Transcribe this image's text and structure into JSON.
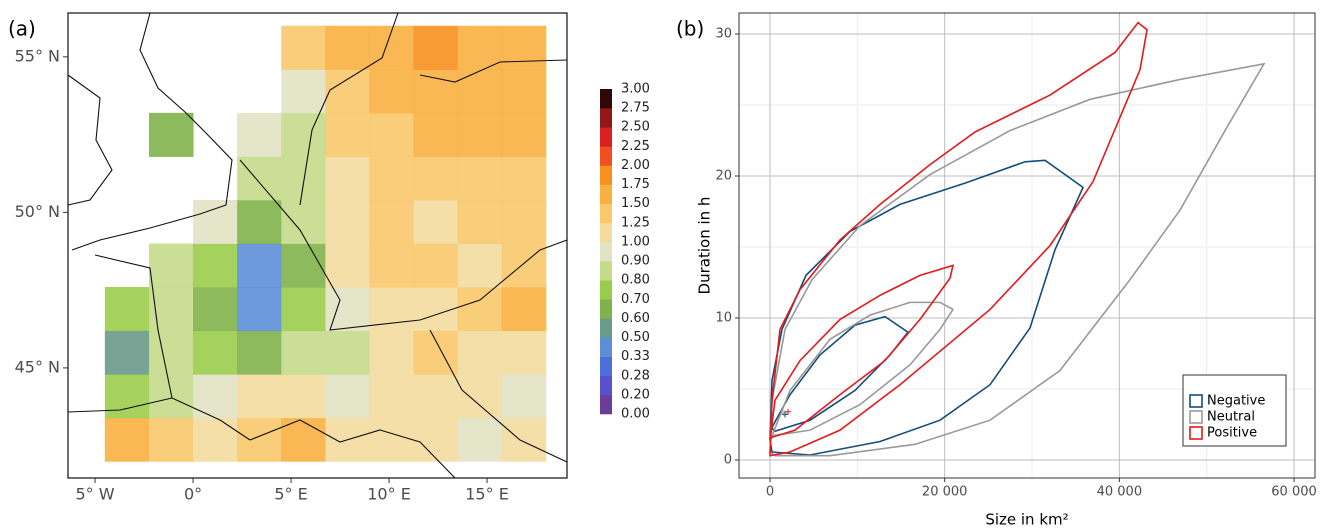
{
  "chart_data": [
    {
      "type": "heatmap",
      "panel_label": "(a)",
      "x": [
        -3.375,
        -1.125,
        1.125,
        3.375,
        5.625,
        7.875,
        10.125,
        12.375,
        14.625,
        16.875
      ],
      "y": [
        42.7,
        44.1,
        45.5,
        46.9,
        48.3,
        49.7,
        51.1,
        52.5,
        53.9,
        55.3
      ],
      "z": [
        [
          1.5,
          1.4,
          1.0,
          1.3,
          1.6,
          1.2,
          1.1,
          1.0,
          0.9,
          1.0
        ],
        [
          0.7,
          0.8,
          0.9,
          1.0,
          1.1,
          0.9,
          1.2,
          1.1,
          1.0,
          0.9
        ],
        [
          0.5,
          0.8,
          0.7,
          0.6,
          0.8,
          0.8,
          1.2,
          1.3,
          1.1,
          1.2
        ],
        [
          0.7,
          0.8,
          0.6,
          0.45,
          0.7,
          0.9,
          1.0,
          1.2,
          1.3,
          1.6
        ],
        [
          null,
          0.8,
          0.7,
          0.45,
          0.6,
          1.0,
          1.3,
          1.3,
          1.2,
          1.4
        ],
        [
          null,
          null,
          0.9,
          0.6,
          0.8,
          1.1,
          1.3,
          1.2,
          1.3,
          1.4
        ],
        [
          null,
          null,
          null,
          0.8,
          0.8,
          1.2,
          1.3,
          1.4,
          1.3,
          1.3
        ],
        [
          null,
          0.6,
          null,
          0.9,
          0.8,
          1.3,
          1.4,
          1.5,
          1.5,
          1.5
        ],
        [
          null,
          null,
          null,
          null,
          0.9,
          1.4,
          1.5,
          1.7,
          1.6,
          1.5
        ],
        [
          null,
          null,
          null,
          null,
          1.3,
          1.5,
          1.5,
          1.8,
          1.7,
          1.6
        ]
      ],
      "xlim": [
        -6.38,
        19.08
      ],
      "ylim": [
        41.46,
        56.41
      ],
      "xticks": [
        {
          "value": -5,
          "label": "5° W"
        },
        {
          "value": 0,
          "label": "0°"
        },
        {
          "value": 5,
          "label": "5° E"
        },
        {
          "value": 10,
          "label": "10° E"
        },
        {
          "value": 15,
          "label": "15° E"
        }
      ],
      "yticks": [
        {
          "value": 45,
          "label": "45° N"
        },
        {
          "value": 50,
          "label": "50° N"
        },
        {
          "value": 55,
          "label": "55° N"
        }
      ],
      "colorbar": {
        "ticks": [
          {
            "value": 0,
            "label": "0.00"
          },
          {
            "value": 0.2,
            "label": "0.20"
          },
          0.28,
          0.33,
          {
            "value": 0.5,
            "label": "0.50"
          },
          {
            "value": 0.6,
            "label": "0.60"
          },
          {
            "value": 0.7,
            "label": "0.70"
          },
          {
            "value": 0.8,
            "label": "0.80"
          },
          {
            "value": 0.9,
            "label": "0.90"
          },
          {
            "value": 1,
            "label": "1.00"
          },
          1.25,
          {
            "value": 1.5,
            "label": "1.50"
          },
          1.75,
          {
            "value": 2,
            "label": "2.00"
          },
          2.25,
          {
            "value": 2.5,
            "label": "2.50"
          },
          2.75,
          {
            "value": 3,
            "label": "3.00"
          }
        ],
        "colors": [
          "#6a3d9a",
          "#5a4fd0",
          "#4f6fd8",
          "#5c8fd6",
          "#6a9a8a",
          "#7fb24a",
          "#9acd4a",
          "#c4dc8a",
          "#e2e2c4",
          "#f4dca0",
          "#f8c86a",
          "#f8b040",
          "#f89020",
          "#f05020",
          "#d82020",
          "#901818",
          "#300808"
        ]
      }
    },
    {
      "type": "contour",
      "panel_label": "(b)",
      "xlabel": "Size in km²",
      "ylabel": "Duration in h",
      "xlim": [
        -3550,
        62400
      ],
      "ylim": [
        -1.27,
        31.48
      ],
      "xticks": [
        0,
        {
          "value": 20000,
          "label": "20 000"
        },
        {
          "value": 40000,
          "label": "40 000"
        },
        {
          "value": 60000,
          "label": "60 000"
        }
      ],
      "yticks": [
        0,
        10,
        20,
        30
      ],
      "xminorticks": [
        10000,
        30000,
        50000
      ],
      "yminorticks": [
        5,
        15,
        25
      ],
      "grid": true,
      "legend": "bottom-right",
      "series": [
        {
          "name": "Negative",
          "color": "#154c79",
          "center_x": 1720,
          "center_y": 3.2,
          "contours": [
            {
              "x": [
                0,
                230,
                1375,
                4120,
                9160,
                14885,
                22330,
                29200,
                31490,
                35840,
                32630,
                29770,
                25190,
                19465,
                12600,
                4580,
                230
              ],
              "y": [
                1.4,
                5.6,
                9.2,
                13,
                16.1,
                18,
                19.5,
                21,
                21.1,
                19.2,
                14.8,
                9.3,
                5.3,
                2.8,
                1.3,
                0.35,
                0.56
              ]
            },
            {
              "x": [
                230,
                2290,
                5725,
                9735,
                13165,
                15800,
                13740,
                9735,
                4580,
                460
              ],
              "y": [
                2.3,
                4.6,
                7.4,
                9.5,
                10.1,
                9,
                7.4,
                4.9,
                2.8,
                2
              ]
            }
          ]
        },
        {
          "name": "Neutral",
          "color": "#999999",
          "center_x": 1600,
          "center_y": 3.3,
          "contours": [
            {
              "x": [
                0,
                230,
                1720,
                4810,
                10300,
                18320,
                27480,
                36640,
                46950,
                56560,
                52100,
                46950,
                41220,
                33200,
                25190,
                16600,
                6870,
                570
              ],
              "y": [
                0.56,
                4.2,
                9.2,
                12.7,
                16.5,
                20.1,
                23.2,
                25.4,
                26.8,
                27.9,
                23.2,
                17.6,
                12.7,
                6.3,
                2.8,
                1.1,
                0.3,
                0.3
              ]
            },
            {
              "x": [
                230,
                2290,
                6870,
                11450,
                16030,
                19465,
                20950,
                19465,
                16030,
                10300,
                4580
              ],
              "y": [
                1.7,
                4.9,
                8.5,
                10.2,
                11.1,
                11.1,
                10.6,
                9.2,
                6.7,
                3.9,
                2.1
              ]
            }
          ]
        },
        {
          "name": "Positive",
          "color": "#e41a1c",
          "center_x": 2060,
          "center_y": 3.4,
          "contours": [
            {
              "x": [
                0,
                230,
                1145,
                3435,
                8015,
                12600,
                18320,
                23470,
                32060,
                39500,
                42140,
                43165,
                42370,
                36980,
                32060,
                25190,
                14885,
                8015,
                2290,
                0
              ],
              "y": [
                0.35,
                4.2,
                9.2,
                12,
                15.5,
                18,
                20.8,
                23.1,
                25.7,
                28.7,
                30.8,
                30.3,
                27.5,
                19.6,
                15.1,
                10.6,
                5.3,
                2.1,
                0.56,
                0.3
              ]
            },
            {
              "x": [
                0,
                570,
                3435,
                8015,
                12600,
                17175,
                20950,
                20610,
                17175,
                13165,
                8015,
                2860,
                230
              ],
              "y": [
                1.4,
                4.2,
                7,
                9.9,
                11.6,
                13,
                13.7,
                12.8,
                9.9,
                7,
                4.6,
                2.1,
                1.6
              ]
            }
          ]
        }
      ]
    }
  ]
}
